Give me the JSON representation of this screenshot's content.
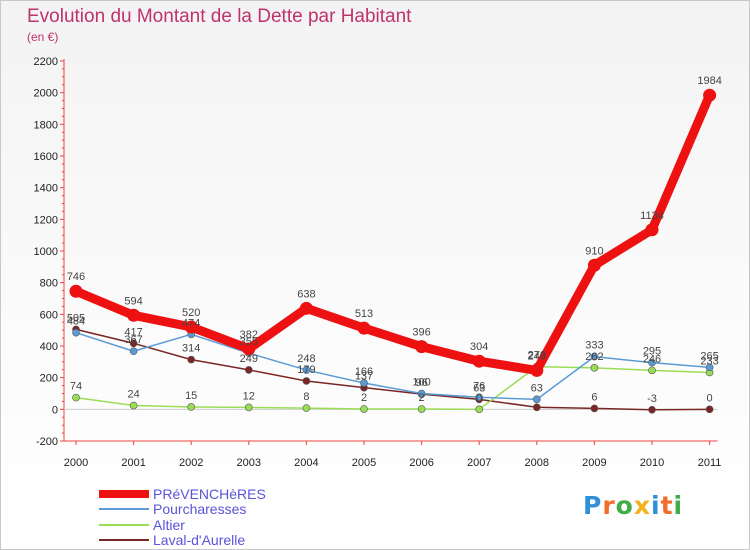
{
  "title": "Evolution du Montant de la Dette par Habitant",
  "subtitle": "(en €)",
  "chart_data": {
    "type": "line",
    "categories": [
      "2000",
      "2001",
      "2002",
      "2003",
      "2004",
      "2005",
      "2006",
      "2007",
      "2008",
      "2009",
      "2010",
      "2011"
    ],
    "ylim": [
      -200,
      2200
    ],
    "yticks": [
      -200,
      0,
      200,
      400,
      600,
      800,
      1000,
      1200,
      1400,
      1600,
      1800,
      2000,
      2200
    ],
    "grid": false,
    "legend_position": "bottom-left",
    "series": [
      {
        "name": "PRéVENCHèRES",
        "color": "#ee1111",
        "values": [
          746,
          594,
          520,
          382,
          638,
          513,
          396,
          304,
          246,
          910,
          1134,
          1984
        ],
        "labels": [
          true,
          true,
          true,
          true,
          true,
          true,
          true,
          true,
          true,
          true,
          true,
          true
        ]
      },
      {
        "name": "Pourcharesses",
        "color": "#5b9bd5",
        "values": [
          484,
          367,
          474,
          355,
          248,
          166,
          100,
          76,
          63,
          333,
          295,
          265
        ],
        "labels": [
          true,
          true,
          true,
          true,
          true,
          true,
          true,
          true,
          true,
          true,
          true,
          true
        ]
      },
      {
        "name": "Altier",
        "color": "#99dd55",
        "values": [
          74,
          24,
          15,
          12,
          8,
          2,
          2,
          0,
          270,
          262,
          246,
          233
        ],
        "labels": [
          true,
          true,
          true,
          true,
          true,
          true,
          true,
          true,
          true,
          true,
          true,
          true
        ]
      },
      {
        "name": "Laval-d'Aurelle",
        "color": "#7a2626",
        "values": [
          505,
          417,
          314,
          249,
          179,
          137,
          96,
          63,
          13,
          6,
          -3,
          0
        ],
        "labels": [
          true,
          true,
          true,
          true,
          true,
          true,
          true,
          true,
          false,
          true,
          true,
          true
        ]
      }
    ]
  },
  "logo": {
    "text": "Proxiti",
    "colors": [
      "#2f8fd8",
      "#ef6f2a",
      "#3fae49",
      "#f3b21c",
      "#2f8fd8",
      "#ef6f2a",
      "#3fae49"
    ]
  }
}
